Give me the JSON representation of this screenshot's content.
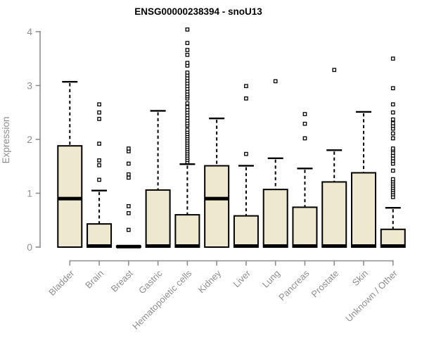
{
  "colors": {
    "background": "#ffffff",
    "box_fill": "#ede8ce",
    "box_border": "#000000",
    "median": "#000000",
    "whisker": "#000000",
    "outlier_fill": "#ffffff",
    "outlier_border": "#000000",
    "axis": "#8e8e8e",
    "tick_label": "#8e8e8e",
    "title": "#000000"
  },
  "chart_data": {
    "type": "boxplot",
    "title": "ENSG00000238394 - snoU13",
    "ylabel": "Expression",
    "xlabel": "",
    "ylim": [
      0,
      4
    ],
    "yticks": [
      0,
      1,
      2,
      3,
      4
    ],
    "grid": false,
    "legend": "none",
    "x_label_rotation_deg": 45,
    "categories": [
      "Bladder",
      "Brain",
      "Breast",
      "Gastric",
      "Hematopoietic cells",
      "Kidney",
      "Liver",
      "Lung",
      "Pancreas",
      "Prostate",
      "Skin",
      "Unknown / Other"
    ],
    "boxes": [
      {
        "category": "Bladder",
        "whisker_low": 0,
        "q1": 0,
        "median": 0.9,
        "q3": 1.88,
        "whisker_high": 3.07,
        "outliers": []
      },
      {
        "category": "Brain",
        "whisker_low": 0,
        "q1": 0,
        "median": 0.02,
        "q3": 0.43,
        "whisker_high": 1.05,
        "outliers": [
          1.25,
          1.52,
          1.61,
          1.92,
          2.38,
          2.5,
          2.65
        ]
      },
      {
        "category": "Breast",
        "whisker_low": 0,
        "q1": 0,
        "median": 0.01,
        "q3": 0.02,
        "whisker_high": 0.02,
        "outliers": [
          0.32,
          0.63,
          0.76,
          1.29,
          1.35,
          1.55,
          1.78,
          1.83
        ]
      },
      {
        "category": "Gastric",
        "whisker_low": 0,
        "q1": 0,
        "median": 0.02,
        "q3": 1.06,
        "whisker_high": 2.53,
        "outliers": []
      },
      {
        "category": "Hematopoietic cells",
        "whisker_low": 0,
        "q1": 0,
        "median": 0.02,
        "q3": 0.6,
        "whisker_high": 1.54,
        "outliers": [
          1.58,
          1.62,
          1.66,
          1.7,
          1.74,
          1.78,
          1.82,
          1.86,
          1.9,
          1.94,
          1.98,
          2.02,
          2.06,
          2.1,
          2.14,
          2.18,
          2.26,
          2.3,
          2.35,
          2.4,
          2.45,
          2.5,
          2.55,
          2.6,
          2.67,
          2.76,
          2.8,
          2.84,
          2.89,
          2.94,
          2.99,
          3.04,
          3.09,
          3.14,
          3.19,
          3.24,
          3.37,
          3.42,
          3.57,
          3.66,
          3.79,
          4.04
        ]
      },
      {
        "category": "Kidney",
        "whisker_low": 0,
        "q1": 0,
        "median": 0.9,
        "q3": 1.51,
        "whisker_high": 2.39,
        "outliers": []
      },
      {
        "category": "Liver",
        "whisker_low": 0,
        "q1": 0,
        "median": 0.02,
        "q3": 0.58,
        "whisker_high": 1.51,
        "outliers": [
          1.73,
          2.76,
          2.99
        ]
      },
      {
        "category": "Lung",
        "whisker_low": 0,
        "q1": 0,
        "median": 0.02,
        "q3": 1.07,
        "whisker_high": 1.65,
        "outliers": [
          3.08
        ]
      },
      {
        "category": "Pancreas",
        "whisker_low": 0,
        "q1": 0,
        "median": 0.02,
        "q3": 0.74,
        "whisker_high": 1.46,
        "outliers": [
          2.02,
          2.29,
          2.47
        ]
      },
      {
        "category": "Prostate",
        "whisker_low": 0,
        "q1": 0,
        "median": 0.02,
        "q3": 1.21,
        "whisker_high": 1.8,
        "outliers": [
          3.29
        ]
      },
      {
        "category": "Skin",
        "whisker_low": 0,
        "q1": 0,
        "median": 0.02,
        "q3": 1.38,
        "whisker_high": 2.51,
        "outliers": []
      },
      {
        "category": "Unknown / Other",
        "whisker_low": 0,
        "q1": 0,
        "median": 0.02,
        "q3": 0.33,
        "whisker_high": 0.73,
        "outliers": [
          0.93,
          0.98,
          1.02,
          1.06,
          1.1,
          1.14,
          1.18,
          1.22,
          1.26,
          1.42,
          1.55,
          1.6,
          1.65,
          1.7,
          1.75,
          1.8,
          1.83,
          2.02,
          2.11,
          2.2,
          2.25,
          2.3,
          2.37,
          2.5,
          2.65,
          2.95,
          3.5
        ]
      }
    ]
  }
}
